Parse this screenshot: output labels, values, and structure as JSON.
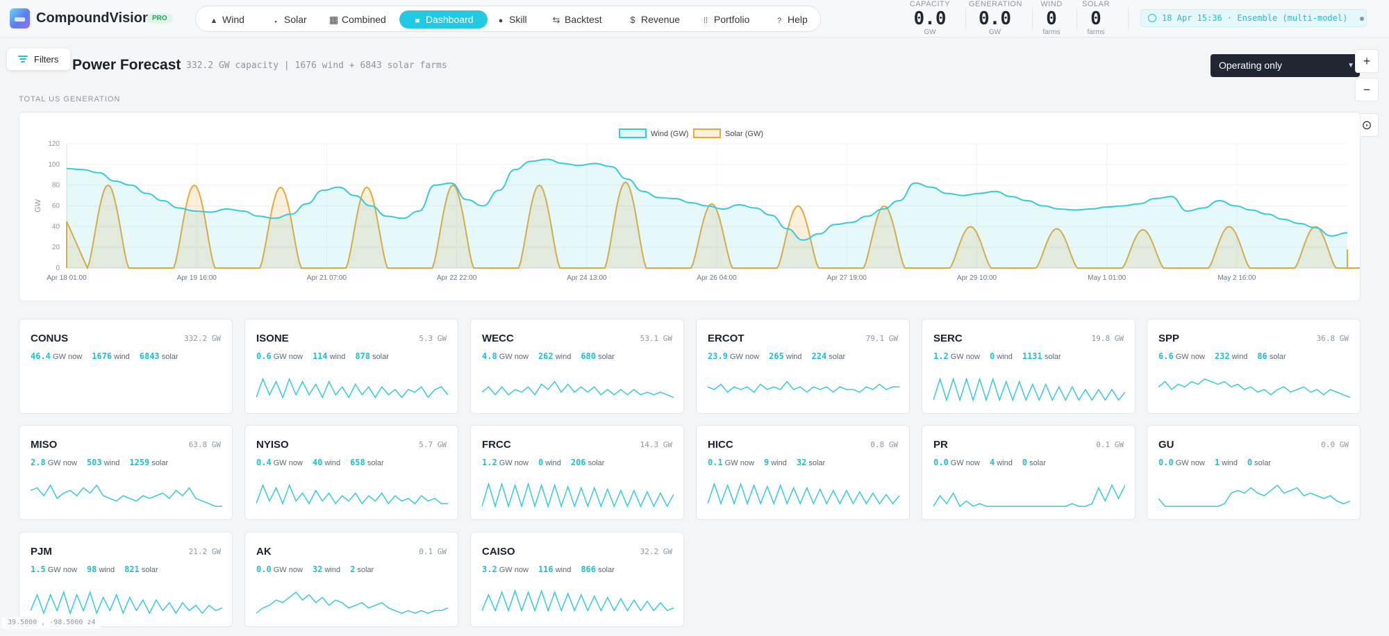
{
  "app": {
    "brand": "CompoundVision",
    "badge": "PRO"
  },
  "nav": [
    {
      "label": "Wind",
      "icon": "wind-turbine-icon",
      "glyph": "▲",
      "active": false
    },
    {
      "label": "Solar",
      "icon": "sun-icon",
      "glyph": "●",
      "active": false
    },
    {
      "label": "Combined",
      "icon": "grid-icon",
      "glyph": "▦",
      "active": false
    },
    {
      "label": "Dashboard",
      "icon": "dashboard-icon",
      "glyph": "■",
      "active": true
    },
    {
      "label": "Skill",
      "icon": "target-icon",
      "glyph": "●",
      "active": false
    },
    {
      "label": "Backtest",
      "icon": "swap-arrows-icon",
      "glyph": "⇆",
      "active": false
    },
    {
      "label": "Revenue",
      "icon": "dollar-icon",
      "glyph": "$",
      "active": false
    },
    {
      "label": "Portfolio",
      "icon": "portfolio-icon",
      "glyph": "⁞⁞",
      "active": false
    },
    {
      "label": "Help",
      "icon": "help-icon",
      "glyph": "?",
      "active": false
    }
  ],
  "stats": [
    {
      "label": "CAPACITY",
      "value": "0.0",
      "unit": "GW"
    },
    {
      "label": "GENERATION",
      "value": "0.0",
      "unit": "GW"
    },
    {
      "label": "WIND",
      "value": "0",
      "unit": "farms"
    },
    {
      "label": "SOLAR",
      "value": "0",
      "unit": "farms"
    }
  ],
  "timestamp": "18 Apr 15:36 · Ensemble (multi-model)",
  "filters_label": "Filters",
  "page": {
    "title": "Power Forecast",
    "subtitle": "332.2 GW capacity | 1676 wind + 6843 solar farms",
    "section_label": "TOTAL US GENERATION"
  },
  "select": {
    "value": "Operating only"
  },
  "map_controls": {
    "zoom_in": "+",
    "zoom_out": "−",
    "locate": "⊙"
  },
  "colors": {
    "accent": "#22c9e3",
    "wind": "#36c9dc",
    "solar": "#e5a93a"
  },
  "chart_data": {
    "type": "area",
    "ylabel": "GW",
    "ylim": [
      0,
      120
    ],
    "yticks": [
      0,
      20,
      40,
      60,
      80,
      100,
      120
    ],
    "x_ticks": [
      "Apr 18 01:00",
      "Apr 19 16:00",
      "Apr 21 07:00",
      "Apr 22 22:00",
      "Apr 24 13:00",
      "Apr 26 04:00",
      "Apr 27 19:00",
      "Apr 29 10:00",
      "May 1 01:00",
      "May 2 16:00"
    ],
    "grid": true,
    "legend": "top-center",
    "series": [
      {
        "name": "Wind (GW)",
        "values": [
          96,
          95,
          92,
          84,
          80,
          72,
          65,
          58,
          55,
          54,
          57,
          55,
          50,
          48,
          52,
          62,
          75,
          78,
          70,
          60,
          50,
          48,
          55,
          80,
          82,
          66,
          60,
          75,
          95,
          103,
          105,
          101,
          99,
          101,
          98,
          86,
          74,
          68,
          67,
          63,
          60,
          57,
          61,
          58,
          51,
          38,
          27,
          33,
          42,
          44,
          50,
          57,
          65,
          82,
          78,
          72,
          70,
          72,
          74,
          69,
          65,
          60,
          57,
          56,
          57,
          59,
          60,
          62,
          67,
          69,
          55,
          58,
          65,
          60,
          56,
          52,
          47,
          43,
          39,
          31,
          34
        ]
      },
      {
        "name": "Solar (GW)",
        "type": "daily-peaks",
        "peak_days": [
          0,
          1,
          2,
          3,
          4,
          5,
          6,
          7,
          8,
          9,
          10,
          11,
          12,
          13,
          14,
          15
        ],
        "peaks": [
          80,
          80,
          78,
          78,
          80,
          80,
          83,
          62,
          60,
          60,
          40,
          38,
          37,
          40,
          40,
          18
        ]
      }
    ]
  },
  "regions": [
    {
      "name": "CONUS",
      "capacity": "332.2 GW",
      "gw_now": "46.4",
      "wind": "1676",
      "solar": "6843",
      "spark": []
    },
    {
      "name": "ISONE",
      "capacity": "5.3 GW",
      "gw_now": "0.6",
      "wind": "114",
      "solar": "878",
      "spark": [
        0.2,
        0.9,
        0.3,
        0.8,
        0.2,
        0.9,
        0.3,
        0.8,
        0.3,
        0.7,
        0.2,
        0.8,
        0.3,
        0.6,
        0.2,
        0.7,
        0.3,
        0.6,
        0.2,
        0.6,
        0.3,
        0.5,
        0.2,
        0.5,
        0.4,
        0.6,
        0.2,
        0.5,
        0.6,
        0.3
      ]
    },
    {
      "name": "WECC",
      "capacity": "53.1 GW",
      "gw_now": "4.8",
      "wind": "262",
      "solar": "680",
      "spark": [
        0.4,
        0.6,
        0.3,
        0.6,
        0.3,
        0.5,
        0.4,
        0.6,
        0.3,
        0.7,
        0.5,
        0.8,
        0.4,
        0.7,
        0.4,
        0.6,
        0.4,
        0.6,
        0.3,
        0.5,
        0.3,
        0.5,
        0.3,
        0.5,
        0.3,
        0.4,
        0.3,
        0.4,
        0.3,
        0.2
      ]
    },
    {
      "name": "ERCOT",
      "capacity": "79.1 GW",
      "gw_now": "23.9",
      "wind": "265",
      "solar": "224",
      "spark": [
        0.6,
        0.5,
        0.7,
        0.4,
        0.6,
        0.5,
        0.6,
        0.4,
        0.7,
        0.5,
        0.6,
        0.5,
        0.8,
        0.5,
        0.6,
        0.4,
        0.6,
        0.5,
        0.6,
        0.4,
        0.6,
        0.5,
        0.5,
        0.4,
        0.6,
        0.5,
        0.7,
        0.5,
        0.6,
        0.6
      ]
    },
    {
      "name": "SERC",
      "capacity": "19.8 GW",
      "gw_now": "1.2",
      "wind": "0",
      "solar": "1131",
      "spark": [
        0.1,
        0.9,
        0.1,
        0.9,
        0.1,
        0.9,
        0.1,
        0.9,
        0.1,
        0.9,
        0.1,
        0.8,
        0.1,
        0.8,
        0.1,
        0.7,
        0.1,
        0.7,
        0.1,
        0.6,
        0.1,
        0.6,
        0.1,
        0.5,
        0.1,
        0.5,
        0.1,
        0.5,
        0.1,
        0.4
      ]
    },
    {
      "name": "SPP",
      "capacity": "36.8 GW",
      "gw_now": "6.6",
      "wind": "232",
      "solar": "86",
      "spark": [
        0.6,
        0.8,
        0.5,
        0.7,
        0.6,
        0.8,
        0.7,
        0.9,
        0.8,
        0.7,
        0.8,
        0.6,
        0.7,
        0.5,
        0.6,
        0.4,
        0.5,
        0.3,
        0.5,
        0.6,
        0.4,
        0.5,
        0.6,
        0.4,
        0.5,
        0.3,
        0.5,
        0.4,
        0.3,
        0.2
      ]
    },
    {
      "name": "MISO",
      "capacity": "63.8 GW",
      "gw_now": "2.8",
      "wind": "503",
      "solar": "1259",
      "spark": [
        0.7,
        0.8,
        0.5,
        0.9,
        0.4,
        0.6,
        0.7,
        0.5,
        0.8,
        0.6,
        0.9,
        0.5,
        0.4,
        0.3,
        0.5,
        0.4,
        0.3,
        0.5,
        0.4,
        0.5,
        0.6,
        0.4,
        0.7,
        0.5,
        0.8,
        0.4,
        0.3,
        0.2,
        0.1,
        0.1
      ]
    },
    {
      "name": "NYISO",
      "capacity": "5.7 GW",
      "gw_now": "0.4",
      "wind": "40",
      "solar": "658",
      "spark": [
        0.2,
        0.9,
        0.3,
        0.8,
        0.2,
        0.9,
        0.3,
        0.6,
        0.2,
        0.7,
        0.3,
        0.6,
        0.2,
        0.5,
        0.3,
        0.6,
        0.2,
        0.5,
        0.3,
        0.6,
        0.2,
        0.5,
        0.3,
        0.4,
        0.2,
        0.5,
        0.3,
        0.4,
        0.2,
        0.2
      ]
    },
    {
      "name": "FRCC",
      "capacity": "14.3 GW",
      "gw_now": "1.2",
      "wind": "0",
      "solar": "206",
      "spark": [
        0.1,
        0.95,
        0.1,
        0.95,
        0.1,
        0.9,
        0.1,
        0.95,
        0.1,
        0.9,
        0.1,
        0.9,
        0.1,
        0.85,
        0.1,
        0.8,
        0.1,
        0.8,
        0.1,
        0.75,
        0.1,
        0.7,
        0.1,
        0.7,
        0.1,
        0.65,
        0.1,
        0.6,
        0.1,
        0.55
      ]
    },
    {
      "name": "HICC",
      "capacity": "0.8 GW",
      "gw_now": "0.1",
      "wind": "9",
      "solar": "32",
      "spark": [
        0.2,
        0.95,
        0.2,
        0.9,
        0.2,
        0.95,
        0.2,
        0.9,
        0.2,
        0.85,
        0.2,
        0.9,
        0.2,
        0.8,
        0.2,
        0.8,
        0.2,
        0.75,
        0.2,
        0.7,
        0.2,
        0.7,
        0.2,
        0.65,
        0.2,
        0.6,
        0.2,
        0.55,
        0.2,
        0.5
      ]
    },
    {
      "name": "PR",
      "capacity": "0.1 GW",
      "gw_now": "0.0",
      "wind": "4",
      "solar": "0",
      "spark": [
        0.1,
        0.5,
        0.2,
        0.6,
        0.1,
        0.3,
        0.1,
        0.2,
        0.1,
        0.1,
        0.1,
        0.1,
        0.1,
        0.1,
        0.1,
        0.1,
        0.1,
        0.1,
        0.1,
        0.1,
        0.1,
        0.2,
        0.1,
        0.1,
        0.2,
        0.8,
        0.3,
        0.9,
        0.4,
        0.9
      ]
    },
    {
      "name": "GU",
      "capacity": "0.0 GW",
      "gw_now": "0.0",
      "wind": "1",
      "solar": "0",
      "spark": [
        0.4,
        0.1,
        0.1,
        0.1,
        0.1,
        0.1,
        0.1,
        0.1,
        0.1,
        0.1,
        0.2,
        0.6,
        0.7,
        0.6,
        0.8,
        0.6,
        0.5,
        0.7,
        0.9,
        0.6,
        0.7,
        0.8,
        0.5,
        0.6,
        0.5,
        0.4,
        0.5,
        0.3,
        0.2,
        0.3
      ]
    },
    {
      "name": "PJM",
      "capacity": "21.2 GW",
      "gw_now": "1.5",
      "wind": "98",
      "solar": "821",
      "spark": [
        0.2,
        0.8,
        0.1,
        0.8,
        0.2,
        0.9,
        0.1,
        0.8,
        0.2,
        0.9,
        0.1,
        0.7,
        0.2,
        0.8,
        0.1,
        0.7,
        0.2,
        0.6,
        0.1,
        0.6,
        0.2,
        0.5,
        0.1,
        0.5,
        0.2,
        0.4,
        0.1,
        0.4,
        0.2,
        0.3
      ]
    },
    {
      "name": "AK",
      "capacity": "0.1 GW",
      "gw_now": "0.0",
      "wind": "32",
      "solar": "2",
      "spark": [
        0.1,
        0.3,
        0.4,
        0.6,
        0.5,
        0.7,
        0.9,
        0.6,
        0.8,
        0.5,
        0.7,
        0.4,
        0.6,
        0.5,
        0.3,
        0.4,
        0.5,
        0.3,
        0.4,
        0.5,
        0.3,
        0.2,
        0.1,
        0.2,
        0.1,
        0.2,
        0.1,
        0.2,
        0.2,
        0.3
      ]
    },
    {
      "name": "CAISO",
      "capacity": "32.2 GW",
      "gw_now": "3.2",
      "wind": "116",
      "solar": "866",
      "spark": [
        0.2,
        0.8,
        0.2,
        0.9,
        0.2,
        0.95,
        0.2,
        0.9,
        0.2,
        0.95,
        0.2,
        0.9,
        0.2,
        0.85,
        0.2,
        0.8,
        0.2,
        0.75,
        0.2,
        0.7,
        0.2,
        0.65,
        0.2,
        0.6,
        0.2,
        0.55,
        0.2,
        0.5,
        0.2,
        0.3
      ]
    }
  ],
  "card_labels": {
    "gw_now": "GW now",
    "wind": "wind",
    "solar": "solar"
  },
  "coordinates": "39.5000 , -98.5000 z4"
}
